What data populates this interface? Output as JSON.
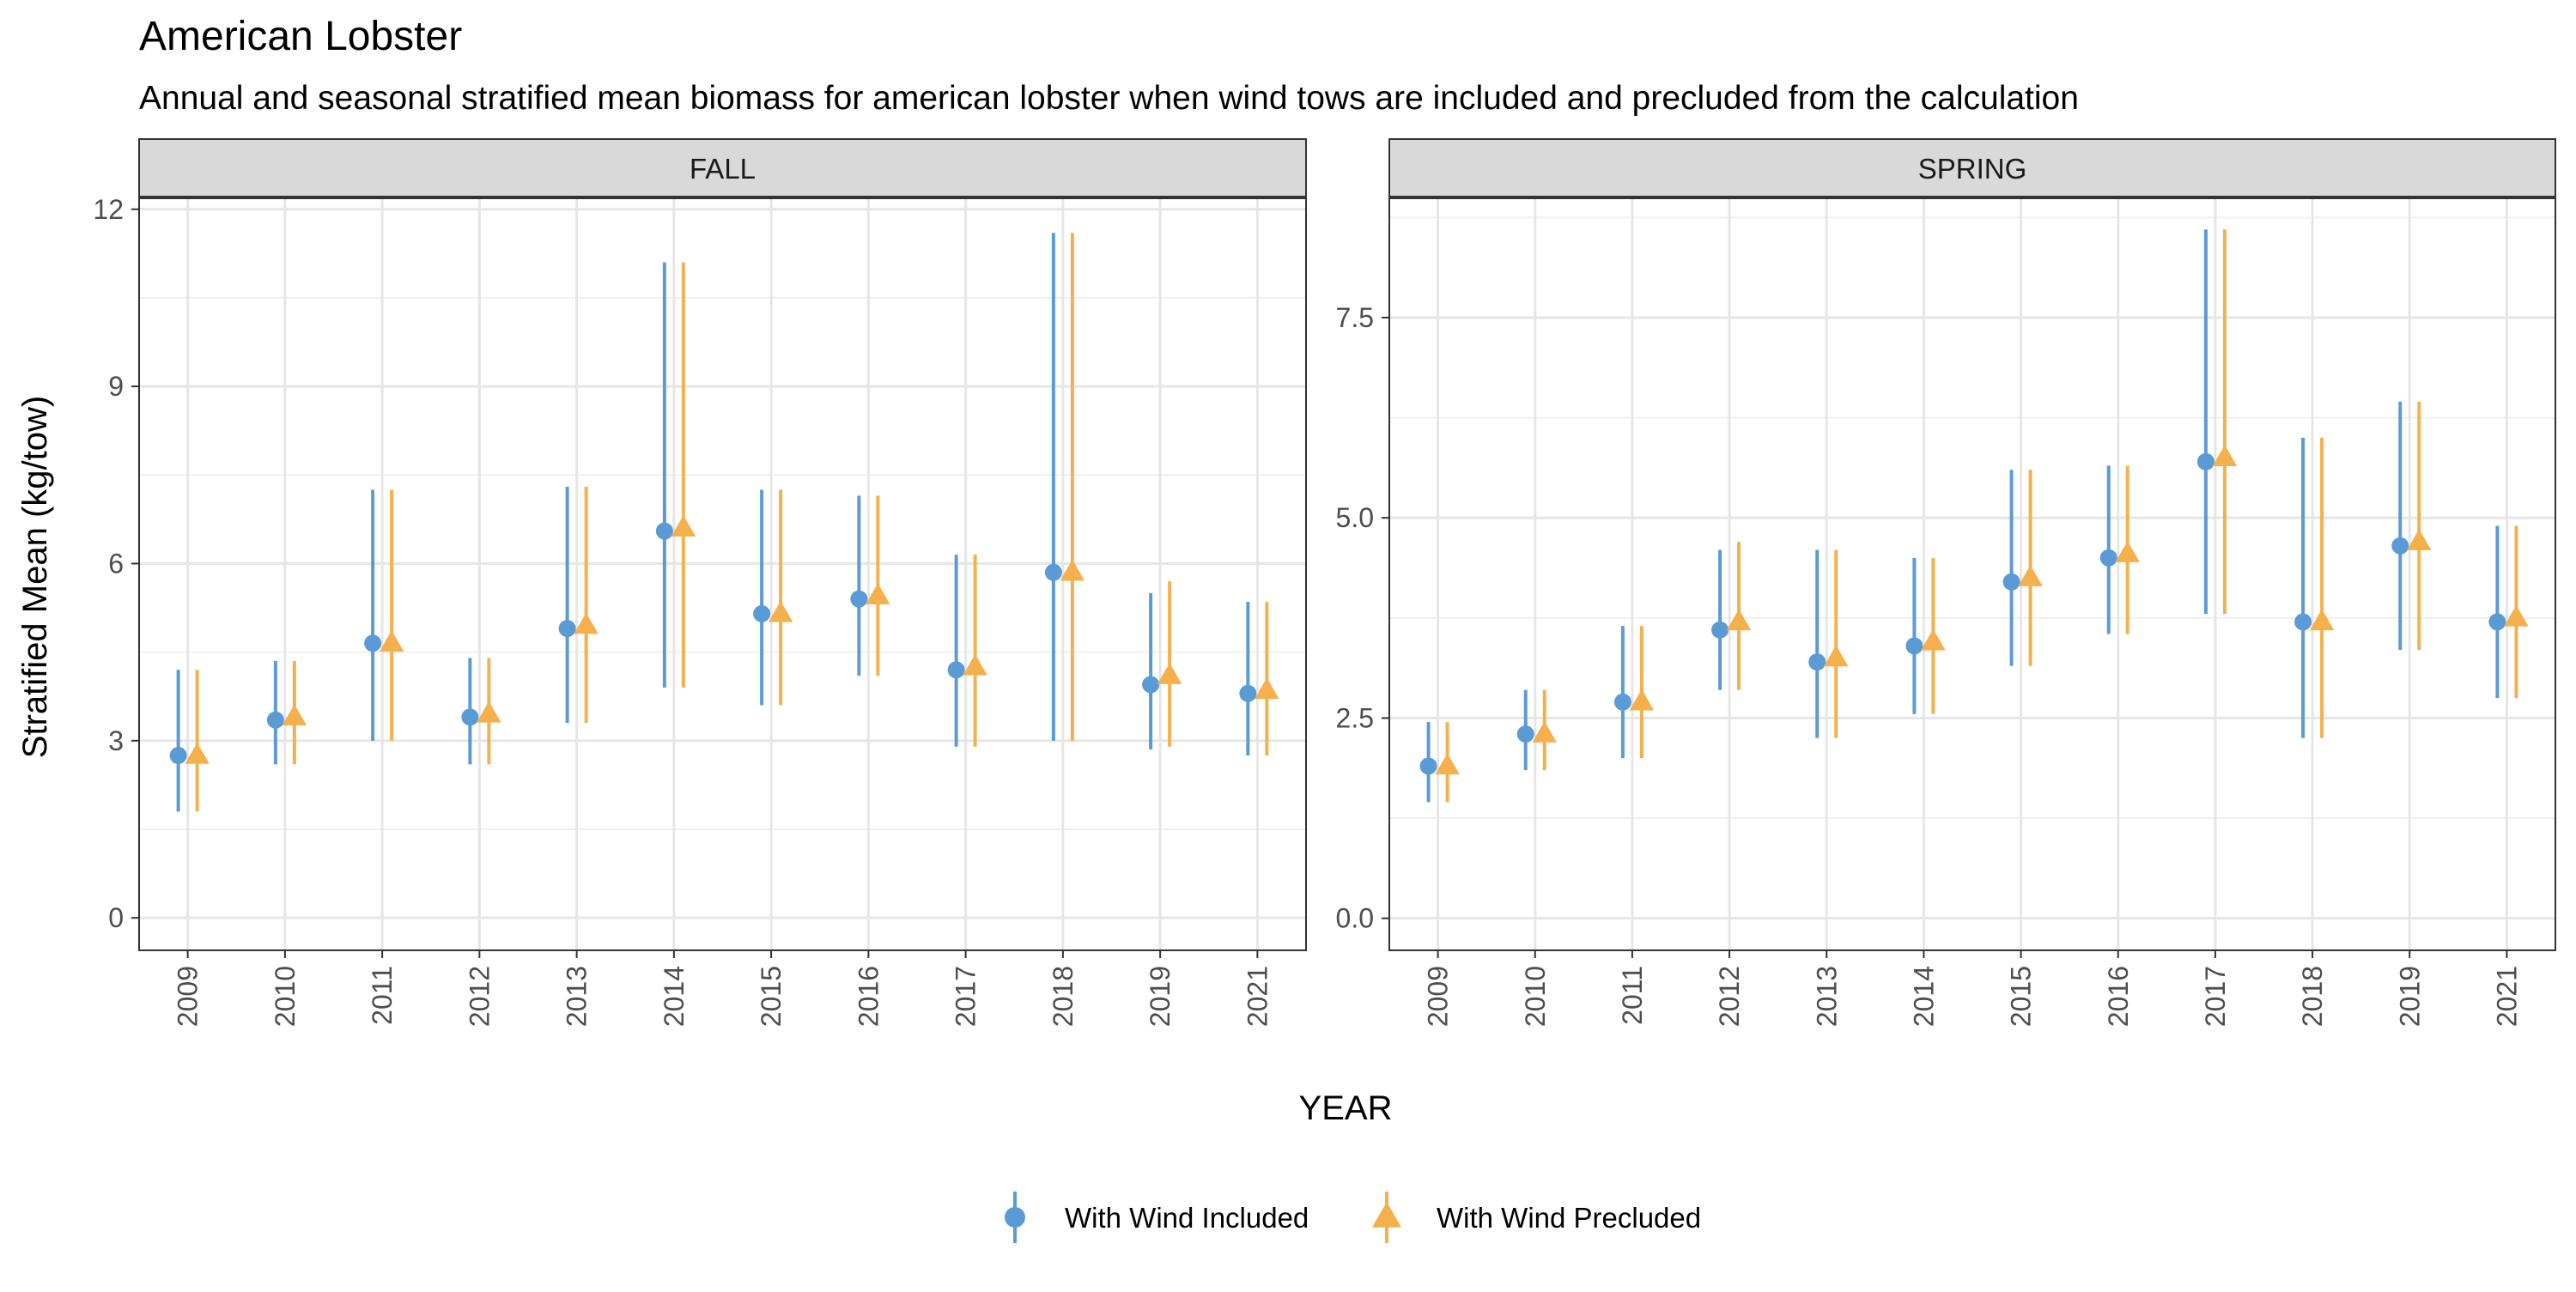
{
  "chart_data": {
    "type": "scatter",
    "title": "American Lobster",
    "subtitle": "Annual and seasonal stratified mean biomass for american lobster when wind tows are included and precluded from the calculation",
    "xlabel": "YEAR",
    "ylabel": "Stratified Mean (kg/tow)",
    "categories": [
      "2009",
      "2010",
      "2011",
      "2012",
      "2013",
      "2014",
      "2015",
      "2016",
      "2017",
      "2018",
      "2019",
      "2021"
    ],
    "grid": true,
    "legend_position": "bottom",
    "colors": {
      "included": "#5B9BD5",
      "precluded": "#F5B04E"
    },
    "legend": [
      {
        "key": "included",
        "label": "With Wind Included",
        "shape": "circle"
      },
      {
        "key": "precluded",
        "label": "With Wind Precluded",
        "shape": "triangle"
      }
    ],
    "panels": [
      {
        "name": "FALL",
        "ylim": [
          -0.55,
          12.2
        ],
        "yticks": [
          0,
          3,
          6,
          9,
          12
        ],
        "ytick_labels": [
          "0",
          "3",
          "6",
          "9",
          "12"
        ],
        "series": [
          {
            "key": "included",
            "name": "With Wind Included",
            "values": [
              2.75,
              3.35,
              4.65,
              3.4,
              4.9,
              6.55,
              5.15,
              5.4,
              4.2,
              5.85,
              3.95,
              3.8
            ],
            "lower": [
              1.8,
              2.6,
              3.0,
              2.6,
              3.3,
              3.9,
              3.6,
              4.1,
              2.9,
              3.0,
              2.85,
              2.75
            ],
            "upper": [
              4.2,
              4.35,
              7.25,
              4.4,
              7.3,
              11.1,
              7.25,
              7.15,
              6.15,
              11.6,
              5.5,
              5.35
            ]
          },
          {
            "key": "precluded",
            "name": "With Wind Precluded",
            "values": [
              2.75,
              3.4,
              4.65,
              3.45,
              4.95,
              6.6,
              5.15,
              5.45,
              4.25,
              5.85,
              4.1,
              3.85
            ],
            "lower": [
              1.8,
              2.6,
              3.0,
              2.6,
              3.3,
              3.9,
              3.6,
              4.1,
              2.9,
              3.0,
              2.9,
              2.75
            ],
            "upper": [
              4.2,
              4.35,
              7.25,
              4.4,
              7.3,
              11.1,
              7.25,
              7.15,
              6.15,
              11.6,
              5.7,
              5.35
            ]
          }
        ]
      },
      {
        "name": "SPRING",
        "ylim": [
          -0.4,
          9.0
        ],
        "yticks": [
          0,
          2.5,
          5,
          7.5
        ],
        "ytick_labels": [
          "0.0",
          "2.5",
          "5.0",
          "7.5"
        ],
        "series": [
          {
            "key": "included",
            "name": "With Wind Included",
            "values": [
              1.9,
              2.3,
              2.7,
              3.6,
              3.2,
              3.4,
              4.2,
              4.5,
              5.7,
              3.7,
              4.65,
              3.7
            ],
            "lower": [
              1.45,
              1.85,
              2.0,
              2.85,
              2.25,
              2.55,
              3.15,
              3.55,
              3.8,
              2.25,
              3.35,
              2.75
            ],
            "upper": [
              2.45,
              2.85,
              3.65,
              4.6,
              4.6,
              4.5,
              5.6,
              5.65,
              8.6,
              6.0,
              6.45,
              4.9
            ]
          },
          {
            "key": "precluded",
            "name": "With Wind Precluded",
            "values": [
              1.9,
              2.3,
              2.7,
              3.7,
              3.25,
              3.45,
              4.25,
              4.55,
              5.75,
              3.7,
              4.7,
              3.75
            ],
            "lower": [
              1.45,
              1.85,
              2.0,
              2.85,
              2.25,
              2.55,
              3.15,
              3.55,
              3.8,
              2.25,
              3.35,
              2.75
            ],
            "upper": [
              2.45,
              2.85,
              3.65,
              4.7,
              4.6,
              4.5,
              5.6,
              5.65,
              8.6,
              6.0,
              6.45,
              4.9
            ]
          }
        ]
      }
    ]
  }
}
